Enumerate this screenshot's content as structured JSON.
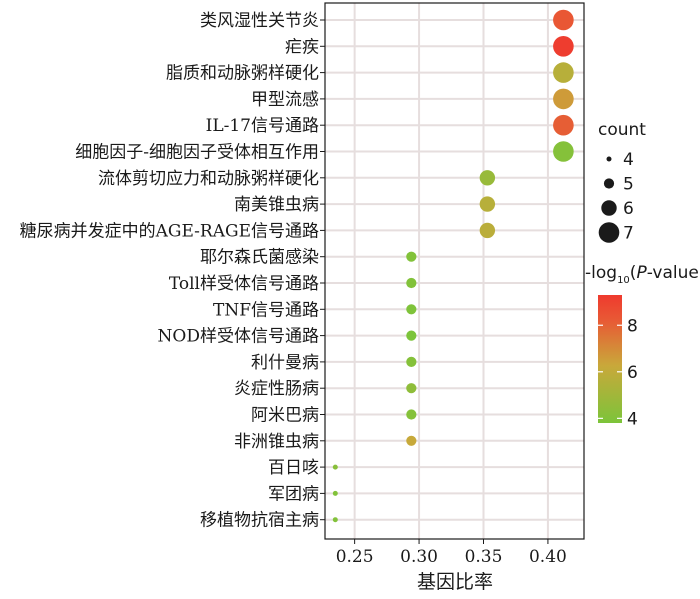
{
  "chart_data": {
    "type": "scatter",
    "title": "",
    "xlabel": "基因比率",
    "ylabel": "",
    "xlim": [
      0.227,
      0.428
    ],
    "xticks": [
      "0.25",
      "0.30",
      "0.35",
      "0.40"
    ],
    "xtick_values": [
      0.25,
      0.3,
      0.35,
      0.4
    ],
    "grid": true,
    "legend_position": "right",
    "categories": [
      "类风湿性关节炎",
      "疟疾",
      "脂质和动脉粥样硬化",
      "甲型流感",
      "IL-17信号通路",
      "细胞因子-细胞因子受体相互作用",
      "流体剪切应力和动脉粥样硬化",
      "南美锥虫病",
      "糖尿病并发症中的AGE-RAGE信号通路",
      "耶尔森氏菌感染",
      "Toll样受体信号通路",
      "TNF信号通路",
      "NOD样受体信号通路",
      "利什曼病",
      "炎症性肠病",
      "阿米巴病",
      "非洲锥虫病",
      "百日咳",
      "军团病",
      "移植物抗宿主病"
    ],
    "points": [
      {
        "gene_ratio": 0.412,
        "count": 7,
        "neg_log10_p": 8.3
      },
      {
        "gene_ratio": 0.412,
        "count": 7,
        "neg_log10_p": 9.2
      },
      {
        "gene_ratio": 0.412,
        "count": 7,
        "neg_log10_p": 5.7
      },
      {
        "gene_ratio": 0.412,
        "count": 7,
        "neg_log10_p": 6.6
      },
      {
        "gene_ratio": 0.412,
        "count": 7,
        "neg_log10_p": 8.1
      },
      {
        "gene_ratio": 0.412,
        "count": 7,
        "neg_log10_p": 4.1
      },
      {
        "gene_ratio": 0.353,
        "count": 6,
        "neg_log10_p": 4.7
      },
      {
        "gene_ratio": 0.353,
        "count": 6,
        "neg_log10_p": 5.7
      },
      {
        "gene_ratio": 0.353,
        "count": 6,
        "neg_log10_p": 5.8
      },
      {
        "gene_ratio": 0.294,
        "count": 5,
        "neg_log10_p": 4.0
      },
      {
        "gene_ratio": 0.294,
        "count": 5,
        "neg_log10_p": 4.0
      },
      {
        "gene_ratio": 0.294,
        "count": 5,
        "neg_log10_p": 3.9
      },
      {
        "gene_ratio": 0.294,
        "count": 5,
        "neg_log10_p": 3.8
      },
      {
        "gene_ratio": 0.294,
        "count": 5,
        "neg_log10_p": 4.1
      },
      {
        "gene_ratio": 0.294,
        "count": 5,
        "neg_log10_p": 4.4
      },
      {
        "gene_ratio": 0.294,
        "count": 5,
        "neg_log10_p": 4.1
      },
      {
        "gene_ratio": 0.294,
        "count": 5,
        "neg_log10_p": 6.2
      },
      {
        "gene_ratio": 0.235,
        "count": 4,
        "neg_log10_p": 4.2
      },
      {
        "gene_ratio": 0.235,
        "count": 4,
        "neg_log10_p": 4.0
      },
      {
        "gene_ratio": 0.235,
        "count": 4,
        "neg_log10_p": 4.0
      }
    ],
    "size_legend": {
      "title": "count",
      "values": [
        4,
        5,
        6,
        7
      ]
    },
    "color_legend": {
      "title_prefix": "-log",
      "title_sub": "10",
      "title_open": "(",
      "title_p": "P",
      "title_suffix": "-value)",
      "ticks": [
        "8",
        "6",
        "4"
      ],
      "tick_values": [
        8,
        6,
        4
      ],
      "range": [
        3.8,
        9.3
      ],
      "colors": [
        "#7cc43a",
        "#c9a83a",
        "#e85a35",
        "#ef3a2e"
      ]
    }
  }
}
